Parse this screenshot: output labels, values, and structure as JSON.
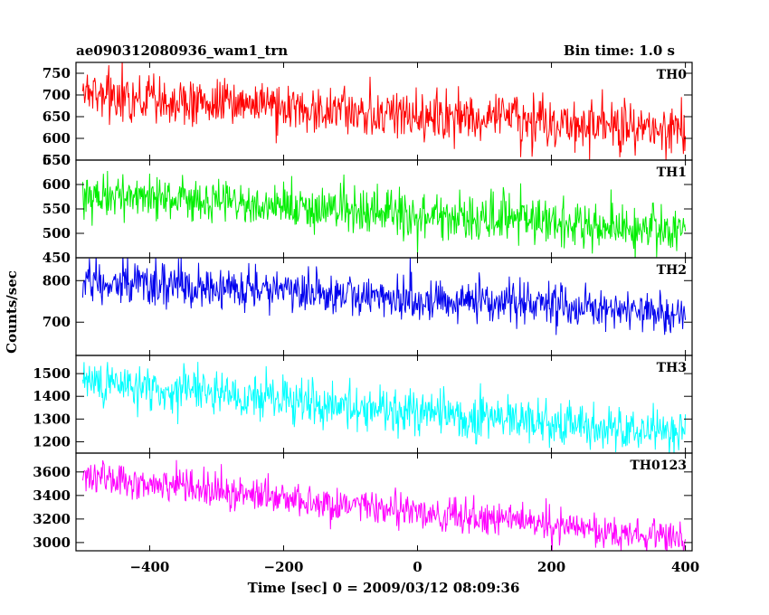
{
  "chart_data": {
    "type": "line",
    "title_left": "ae090312080936_wam1_trn",
    "title_right": "Bin time: 1.0 s",
    "xlabel": "Time [sec] 0 = 2009/03/12 08:09:36",
    "ylabel": "Counts/sec",
    "xlim": [
      -510,
      410
    ],
    "x_ticks": [
      -400,
      -200,
      0,
      200,
      400
    ],
    "x_tick_labels": [
      "−400",
      "−200",
      "0",
      "200",
      "400"
    ],
    "x_start": -500,
    "x_end": 400,
    "bin_time": 1.0,
    "series": [
      {
        "name": "TH0",
        "color": "#ff0000",
        "ylim": [
          550,
          775
        ],
        "y_ticks": [
          550,
          600,
          650,
          700,
          750
        ],
        "y_tick_labels": [
          "550",
          "600",
          "650",
          "700",
          "750"
        ],
        "trend_start": 700,
        "trend_end": 615,
        "noise_sd": 28
      },
      {
        "name": "TH1",
        "color": "#00ee00",
        "ylim": [
          450,
          650
        ],
        "y_ticks": [
          450,
          500,
          550,
          600,
          650
        ],
        "y_tick_labels": [
          "450",
          "500",
          "550",
          "600",
          "650"
        ],
        "trend_start": 580,
        "trend_end": 505,
        "noise_sd": 24
      },
      {
        "name": "TH2",
        "color": "#0000ee",
        "ylim": [
          620,
          855
        ],
        "y_ticks": [
          700,
          800
        ],
        "y_tick_labels": [
          "700",
          "800"
        ],
        "trend_start": 800,
        "trend_end": 720,
        "noise_sd": 25
      },
      {
        "name": "TH3",
        "color": "#00ffff",
        "ylim": [
          1150,
          1580
        ],
        "y_ticks": [
          1200,
          1300,
          1400,
          1500
        ],
        "y_tick_labels": [
          "1200",
          "1300",
          "1400",
          "1500"
        ],
        "trend_start": 1460,
        "trend_end": 1230,
        "noise_sd": 50
      },
      {
        "name": "TH0123",
        "color": "#ff00ff",
        "ylim": [
          2930,
          3760
        ],
        "y_ticks": [
          3000,
          3200,
          3400,
          3600
        ],
        "y_tick_labels": [
          "3000",
          "3200",
          "3400",
          "3600"
        ],
        "trend_start": 3560,
        "trend_end": 3020,
        "noise_sd": 75
      }
    ]
  }
}
